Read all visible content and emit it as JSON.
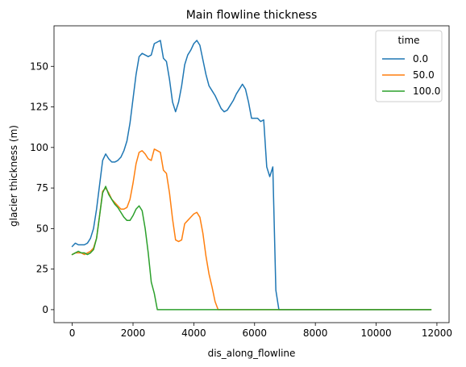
{
  "chart_data": {
    "type": "line",
    "title": "Main flowline thickness",
    "xlabel": "dis_along_flowline",
    "ylabel": "glacier thickness (m)",
    "xlim": [
      -600,
      12400
    ],
    "ylim": [
      -8,
      175
    ],
    "xticks": [
      0,
      2000,
      4000,
      6000,
      8000,
      10000,
      12000
    ],
    "yticks": [
      0,
      25,
      50,
      75,
      100,
      125,
      150
    ],
    "legend": {
      "title": "time",
      "placement": "top-right"
    },
    "series": [
      {
        "name": "0.0",
        "color": "#1f77b4",
        "x": [
          0,
          100,
          200,
          300,
          400,
          500,
          600,
          700,
          800,
          900,
          1000,
          1100,
          1200,
          1300,
          1400,
          1500,
          1600,
          1700,
          1800,
          1900,
          2000,
          2100,
          2200,
          2300,
          2400,
          2500,
          2600,
          2700,
          2800,
          2900,
          3000,
          3100,
          3200,
          3300,
          3400,
          3500,
          3600,
          3700,
          3800,
          3900,
          4000,
          4100,
          4200,
          4300,
          4400,
          4500,
          4600,
          4700,
          4800,
          4900,
          5000,
          5100,
          5200,
          5300,
          5400,
          5500,
          5600,
          5700,
          5800,
          5900,
          6000,
          6100,
          6200,
          6300,
          6400,
          6500,
          6600,
          6700,
          6800,
          6900,
          7000,
          8000,
          9000,
          10000,
          11000,
          11800
        ],
        "y": [
          39,
          41,
          40,
          40,
          40,
          41,
          44,
          50,
          62,
          77,
          92,
          96,
          93,
          91,
          91,
          92,
          94,
          98,
          104,
          115,
          130,
          145,
          156,
          158,
          157,
          156,
          157,
          164,
          165,
          166,
          155,
          153,
          142,
          128,
          122,
          128,
          138,
          151,
          157,
          160,
          164,
          166,
          163,
          154,
          145,
          138,
          135,
          132,
          128,
          124,
          122,
          123,
          126,
          129,
          133,
          136,
          139,
          136,
          128,
          118,
          118,
          118,
          116,
          117,
          88,
          82,
          88,
          12,
          0,
          0,
          0,
          0,
          0,
          0,
          0,
          0
        ]
      },
      {
        "name": "50.0",
        "color": "#ff7f0e",
        "x": [
          0,
          100,
          200,
          300,
          400,
          500,
          600,
          700,
          800,
          900,
          1000,
          1100,
          1200,
          1300,
          1400,
          1500,
          1600,
          1700,
          1800,
          1900,
          2000,
          2100,
          2200,
          2300,
          2400,
          2500,
          2600,
          2700,
          2800,
          2900,
          3000,
          3100,
          3200,
          3300,
          3400,
          3500,
          3600,
          3700,
          3800,
          3900,
          4000,
          4100,
          4200,
          4300,
          4400,
          4500,
          4600,
          4700,
          4800,
          5000,
          6000,
          8000,
          10000,
          11800
        ],
        "y": [
          34,
          35,
          35,
          35,
          34,
          35,
          36,
          38,
          44,
          58,
          73,
          75,
          72,
          68,
          66,
          64,
          62,
          62,
          63,
          68,
          78,
          90,
          97,
          98,
          96,
          93,
          92,
          99,
          98,
          97,
          86,
          84,
          72,
          56,
          43,
          42,
          43,
          53,
          55,
          57,
          59,
          60,
          57,
          47,
          33,
          22,
          14,
          5,
          0,
          0,
          0,
          0,
          0,
          0
        ]
      },
      {
        "name": "100.0",
        "color": "#2ca02c",
        "x": [
          0,
          100,
          200,
          300,
          400,
          500,
          600,
          700,
          800,
          900,
          1000,
          1100,
          1200,
          1300,
          1400,
          1500,
          1600,
          1700,
          1800,
          1900,
          2000,
          2100,
          2200,
          2300,
          2400,
          2500,
          2600,
          2700,
          2800,
          3000,
          4000,
          6000,
          8000,
          10000,
          11800
        ],
        "y": [
          34,
          35,
          36,
          35,
          35,
          34,
          35,
          37,
          44,
          58,
          72,
          76,
          71,
          68,
          65,
          63,
          60,
          57,
          55,
          55,
          58,
          62,
          64,
          61,
          50,
          35,
          17,
          10,
          0,
          0,
          0,
          0,
          0,
          0,
          0
        ]
      }
    ]
  }
}
